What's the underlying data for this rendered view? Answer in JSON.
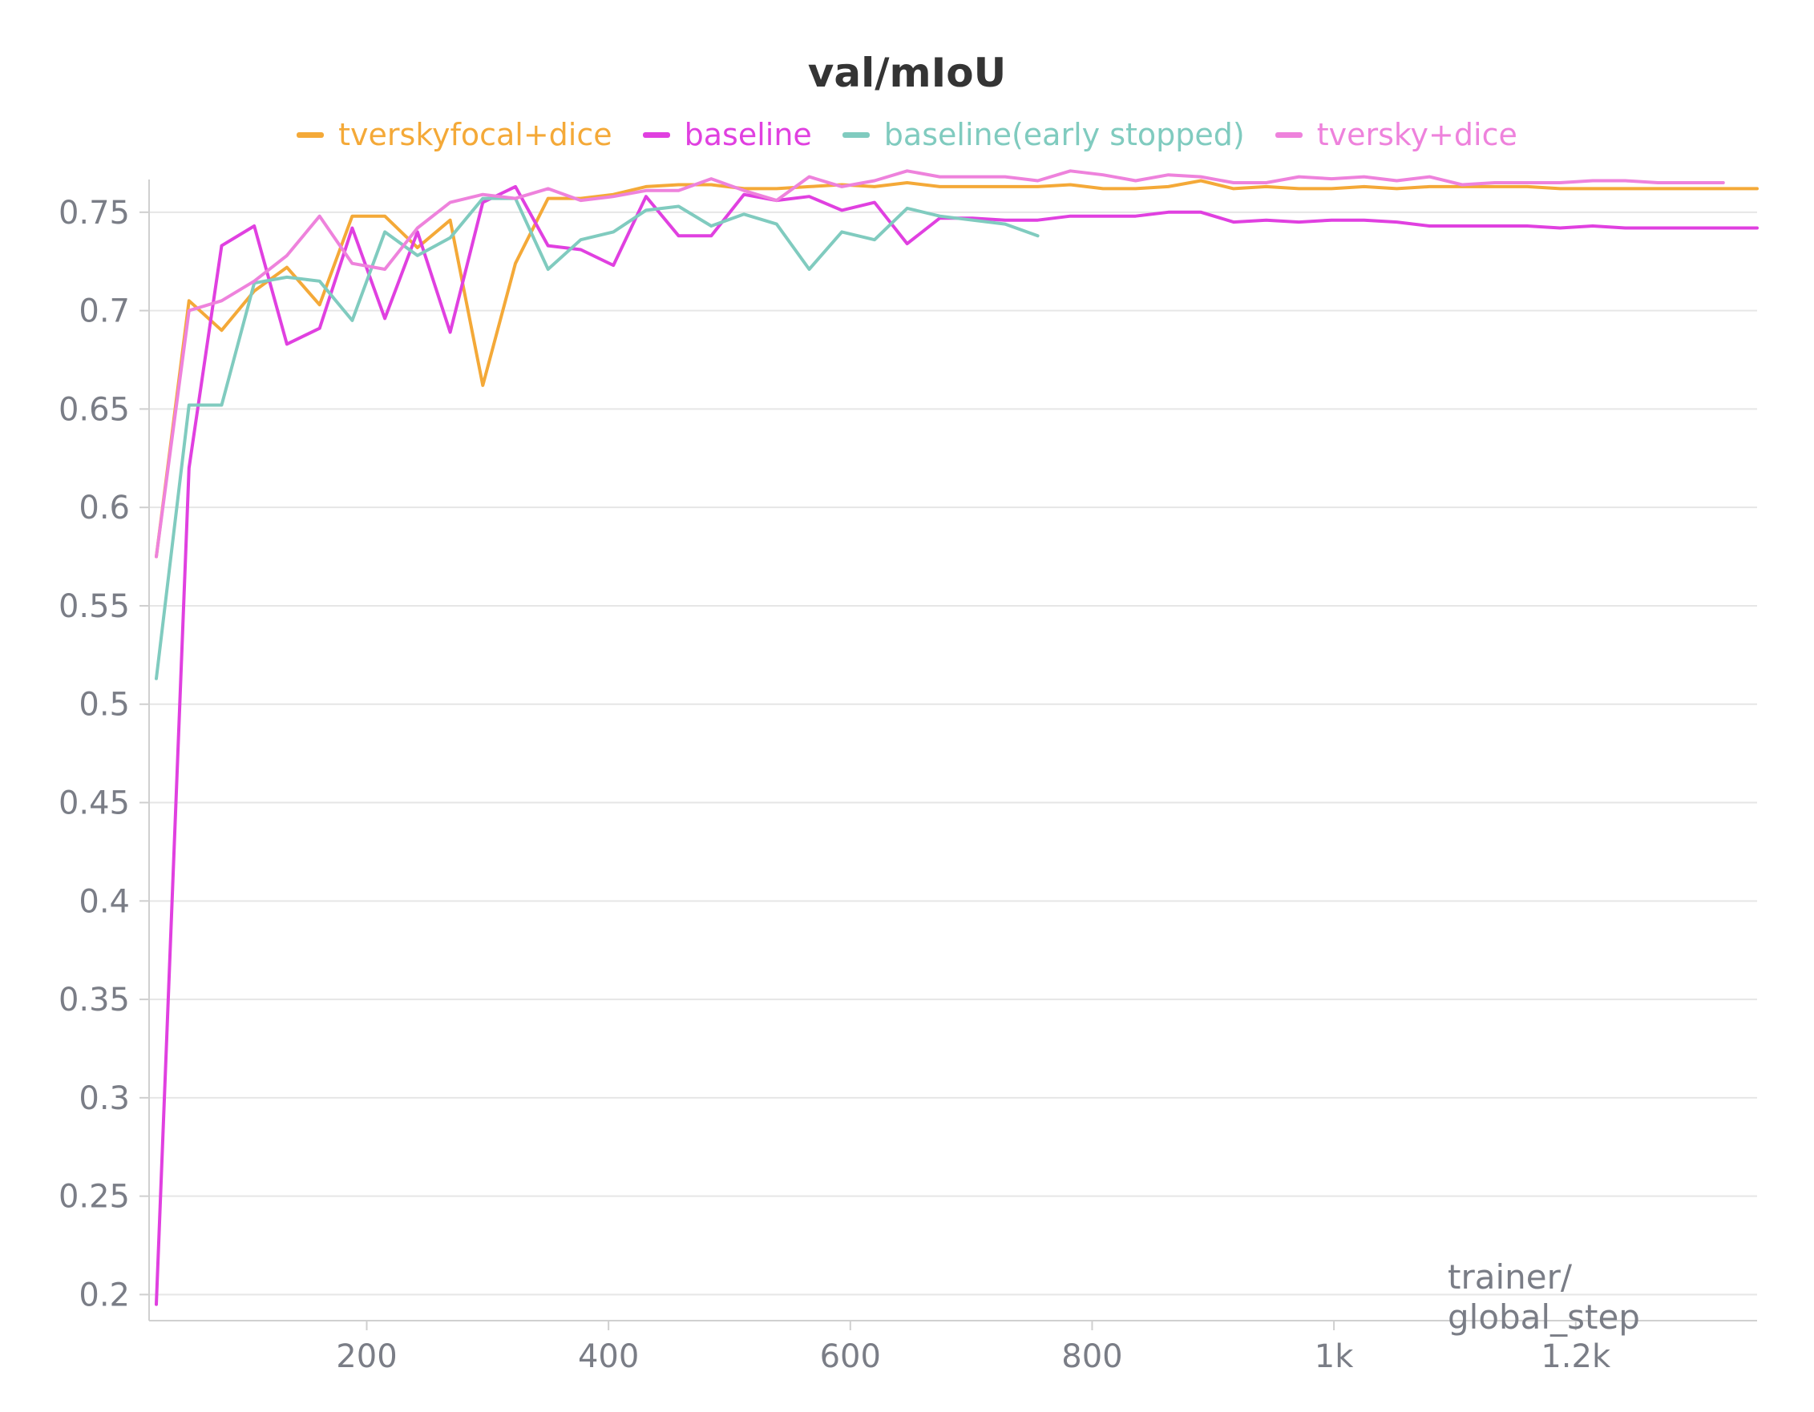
{
  "chart_data": {
    "type": "line",
    "title": "val/mIoU",
    "xlabel": [
      "trainer/",
      "global_step"
    ],
    "ylabel": "",
    "xlim": [
      20,
      1350
    ],
    "ylim": [
      0.19,
      0.765
    ],
    "xticks": [
      200,
      400,
      600,
      800,
      1000,
      1200
    ],
    "xtick_labels": [
      "200",
      "400",
      "600",
      "800",
      "1k",
      "1.2k"
    ],
    "yticks": [
      0.2,
      0.25,
      0.3,
      0.35,
      0.4,
      0.45,
      0.5,
      0.55,
      0.6,
      0.65,
      0.7,
      0.75
    ],
    "ytick_labels": [
      "0.2",
      "0.25",
      "0.3",
      "0.35",
      "0.4",
      "0.45",
      "0.5",
      "0.55",
      "0.6",
      "0.65",
      "0.7",
      "0.75"
    ],
    "grid": true,
    "legend_position": "top-center",
    "series": [
      {
        "name": "tverskyfocal+dice",
        "color": "#f4a938",
        "x": [
          26,
          53,
          80,
          107,
          134,
          161,
          188,
          215,
          242,
          269,
          296,
          323,
          350,
          377,
          404,
          431,
          458,
          485,
          512,
          539,
          566,
          593,
          620,
          647,
          674,
          701,
          728,
          755,
          782,
          809,
          836,
          863,
          890,
          917,
          944,
          971,
          998,
          1025,
          1052,
          1079,
          1106,
          1133,
          1160,
          1187,
          1214,
          1241,
          1268,
          1295,
          1322,
          1350
        ],
        "y": [
          0.575,
          0.705,
          0.69,
          0.71,
          0.722,
          0.703,
          0.748,
          0.748,
          0.732,
          0.746,
          0.662,
          0.724,
          0.757,
          0.757,
          0.759,
          0.763,
          0.764,
          0.764,
          0.762,
          0.762,
          0.763,
          0.764,
          0.763,
          0.765,
          0.763,
          0.763,
          0.763,
          0.763,
          0.764,
          0.762,
          0.762,
          0.763,
          0.766,
          0.762,
          0.763,
          0.762,
          0.762,
          0.763,
          0.762,
          0.763,
          0.763,
          0.763,
          0.763,
          0.762,
          0.762,
          0.762,
          0.762,
          0.762,
          0.762,
          0.762
        ]
      },
      {
        "name": "baseline",
        "color": "#e040e0",
        "x": [
          26,
          53,
          80,
          107,
          134,
          161,
          188,
          215,
          242,
          269,
          296,
          323,
          350,
          377,
          404,
          431,
          458,
          485,
          512,
          539,
          566,
          593,
          620,
          647,
          674,
          701,
          728,
          755,
          782,
          809,
          836,
          863,
          890,
          917,
          944,
          971,
          998,
          1025,
          1052,
          1079,
          1106,
          1133,
          1160,
          1187,
          1214,
          1241,
          1268,
          1295,
          1322,
          1350
        ],
        "y": [
          0.195,
          0.62,
          0.733,
          0.743,
          0.683,
          0.691,
          0.742,
          0.696,
          0.74,
          0.689,
          0.755,
          0.763,
          0.733,
          0.731,
          0.723,
          0.758,
          0.738,
          0.738,
          0.759,
          0.756,
          0.758,
          0.751,
          0.755,
          0.734,
          0.747,
          0.747,
          0.746,
          0.746,
          0.748,
          0.748,
          0.748,
          0.75,
          0.75,
          0.745,
          0.746,
          0.745,
          0.746,
          0.746,
          0.745,
          0.743,
          0.743,
          0.743,
          0.743,
          0.742,
          0.743,
          0.742,
          0.742,
          0.742,
          0.742,
          0.742
        ]
      },
      {
        "name": "baseline(early stopped)",
        "color": "#80cbbf",
        "x": [
          26,
          53,
          80,
          107,
          134,
          161,
          188,
          215,
          242,
          269,
          296,
          323,
          350,
          377,
          404,
          431,
          458,
          485,
          512,
          539,
          566,
          593,
          620,
          647,
          674,
          701,
          728,
          755
        ],
        "y": [
          0.513,
          0.652,
          0.652,
          0.714,
          0.717,
          0.715,
          0.695,
          0.74,
          0.728,
          0.737,
          0.757,
          0.757,
          0.721,
          0.736,
          0.74,
          0.751,
          0.753,
          0.743,
          0.749,
          0.744,
          0.721,
          0.74,
          0.736,
          0.752,
          0.748,
          0.746,
          0.744,
          0.738
        ]
      },
      {
        "name": "tversky+dice",
        "color": "#ee82dc",
        "x": [
          26,
          53,
          80,
          107,
          134,
          161,
          188,
          215,
          242,
          269,
          296,
          323,
          350,
          377,
          404,
          431,
          458,
          485,
          512,
          539,
          566,
          593,
          620,
          647,
          674,
          701,
          728,
          755,
          782,
          809,
          836,
          863,
          890,
          917,
          944,
          971,
          998,
          1025,
          1052,
          1079,
          1106,
          1133,
          1160,
          1187,
          1214,
          1241,
          1268,
          1295,
          1322
        ],
        "y": [
          0.575,
          0.7,
          0.705,
          0.715,
          0.728,
          0.748,
          0.724,
          0.721,
          0.742,
          0.755,
          0.759,
          0.757,
          0.762,
          0.756,
          0.758,
          0.761,
          0.761,
          0.767,
          0.761,
          0.756,
          0.768,
          0.763,
          0.766,
          0.771,
          0.768,
          0.768,
          0.768,
          0.766,
          0.771,
          0.769,
          0.766,
          0.769,
          0.768,
          0.765,
          0.765,
          0.768,
          0.767,
          0.768,
          0.766,
          0.768,
          0.764,
          0.765,
          0.765,
          0.765,
          0.766,
          0.766,
          0.765,
          0.765,
          0.765
        ]
      }
    ]
  }
}
